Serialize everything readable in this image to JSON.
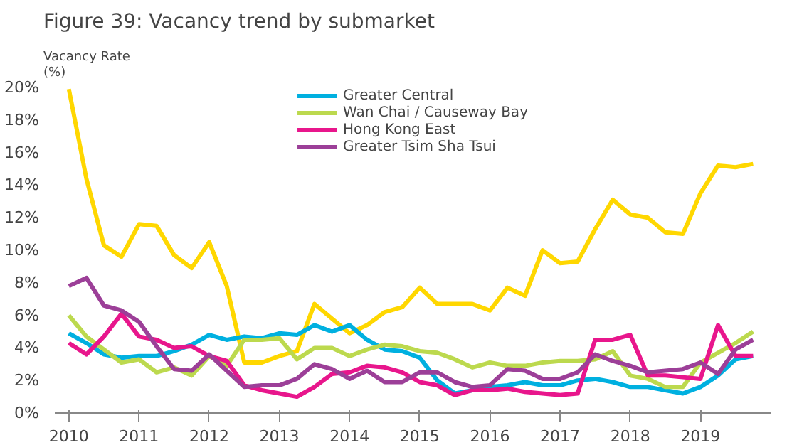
{
  "chart_data": {
    "type": "line",
    "title": "Figure 39: Vacancy trend by submarket",
    "ylabel": "Vacancy Rate\n(%)",
    "x": [
      2010,
      2010.25,
      2010.5,
      2010.75,
      2011,
      2011.25,
      2011.5,
      2011.75,
      2012,
      2012.25,
      2012.5,
      2012.75,
      2013,
      2013.25,
      2013.5,
      2013.75,
      2014,
      2014.25,
      2014.5,
      2014.75,
      2015,
      2015.25,
      2015.5,
      2015.75,
      2016,
      2016.25,
      2016.5,
      2016.75,
      2017,
      2017.25,
      2017.5,
      2017.75,
      2018,
      2018.25,
      2018.5,
      2018.75,
      2019,
      2019.25,
      2019.5,
      2019.75
    ],
    "xlim": [
      2009.8,
      2020.0
    ],
    "xticks": [
      2010,
      2011,
      2012,
      2013,
      2014,
      2015,
      2016,
      2017,
      2018,
      2019
    ],
    "ylim": [
      0,
      20
    ],
    "yticks": [
      {
        "value": 0,
        "label": "0%"
      },
      {
        "value": 2,
        "label": "2%"
      },
      {
        "value": 4,
        "label": "4%"
      },
      {
        "value": 6,
        "label": "6%"
      },
      {
        "value": 8,
        "label": "8%"
      },
      {
        "value": 10,
        "label": "10%"
      },
      {
        "value": 12,
        "label": "12%"
      },
      {
        "value": 14,
        "label": "14%"
      },
      {
        "value": 16,
        "label": "16%"
      },
      {
        "value": 18,
        "label": "18%"
      },
      {
        "value": 20,
        "label": "20%"
      }
    ],
    "series": [
      {
        "color": "#ffd700",
        "values": [
          19.9,
          14.4,
          10.3,
          9.6,
          11.6,
          11.5,
          9.7,
          8.9,
          10.5,
          7.8,
          3.1,
          3.1,
          3.5,
          3.8,
          6.7,
          5.8,
          4.9,
          5.4,
          6.2,
          6.5,
          7.7,
          6.7,
          6.7,
          6.7,
          6.3,
          7.7,
          7.2,
          10.0,
          9.2,
          9.3,
          11.3,
          13.1,
          12.2,
          12.0,
          11.1,
          11.0,
          13.5,
          15.2,
          15.1,
          15.3
        ]
      },
      {
        "name": "Greater Central",
        "color": "#00b0e0",
        "values": [
          4.9,
          4.3,
          3.6,
          3.4,
          3.5,
          3.5,
          3.8,
          4.2,
          4.8,
          4.5,
          4.7,
          4.6,
          4.9,
          4.8,
          5.4,
          5.0,
          5.4,
          4.5,
          3.9,
          3.8,
          3.4,
          2.0,
          1.2,
          1.4,
          1.6,
          1.7,
          1.9,
          1.7,
          1.7,
          2.0,
          2.1,
          1.9,
          1.6,
          1.6,
          1.4,
          1.2,
          1.6,
          2.3,
          3.3,
          3.5
        ]
      },
      {
        "name": "Wan Chai / Causeway Bay",
        "color": "#bcd94e",
        "values": [
          6.0,
          4.7,
          3.9,
          3.1,
          3.3,
          2.5,
          2.8,
          2.3,
          3.5,
          2.9,
          4.5,
          4.5,
          4.6,
          3.3,
          4.0,
          4.0,
          3.5,
          3.9,
          4.2,
          4.1,
          3.8,
          3.7,
          3.3,
          2.8,
          3.1,
          2.9,
          2.9,
          3.1,
          3.2,
          3.2,
          3.3,
          3.8,
          2.3,
          2.1,
          1.6,
          1.6,
          3.1,
          3.7,
          4.3,
          5.0
        ]
      },
      {
        "name": "Hong Kong East",
        "color": "#e8168c",
        "values": [
          4.3,
          3.6,
          4.7,
          6.1,
          4.7,
          4.5,
          4.0,
          4.1,
          3.5,
          3.2,
          1.7,
          1.4,
          1.2,
          1.0,
          1.6,
          2.4,
          2.5,
          2.9,
          2.8,
          2.5,
          1.9,
          1.7,
          1.1,
          1.4,
          1.4,
          1.5,
          1.3,
          1.2,
          1.1,
          1.2,
          4.5,
          4.5,
          4.8,
          2.3,
          2.3,
          2.2,
          2.1,
          5.4,
          3.5,
          3.5
        ]
      },
      {
        "name": "Greater Tsim Sha Tsui",
        "color": "#9c3f98",
        "values": [
          7.8,
          8.3,
          6.6,
          6.3,
          5.6,
          4.1,
          2.7,
          2.6,
          3.6,
          2.6,
          1.6,
          1.7,
          1.7,
          2.1,
          3.0,
          2.7,
          2.1,
          2.6,
          1.9,
          1.9,
          2.5,
          2.5,
          1.9,
          1.6,
          1.7,
          2.7,
          2.6,
          2.1,
          2.1,
          2.5,
          3.6,
          3.2,
          2.9,
          2.5,
          2.6,
          2.7,
          3.1,
          2.4,
          3.9,
          4.5
        ]
      }
    ],
    "legend": "top",
    "grid": false,
    "marker": "none",
    "line_style": "solid"
  }
}
